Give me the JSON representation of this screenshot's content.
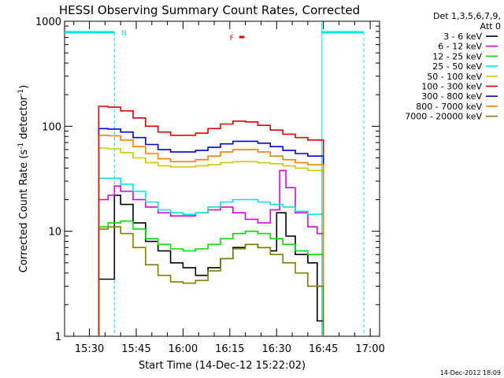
{
  "chart_data": {
    "type": "line",
    "title": "HESSI Observing Summary Count Rates, Corrected",
    "xlabel": "Start Time (14-Dec-12 15:22:02)",
    "ylabel_main": "Corrected Count Rate (s",
    "ylabel_sup1": "-1",
    "ylabel_mid": " detector",
    "ylabel_sup2": "-1",
    "ylabel_end": ")",
    "y_scale": "log",
    "ylim": [
      1,
      1000
    ],
    "xlim": [
      "15:22:02",
      "17:03:00"
    ],
    "x_ticks": [
      "15:30",
      "15:45",
      "16:00",
      "16:15",
      "16:30",
      "16:45",
      "17:00"
    ],
    "y_ticks": [
      "1",
      "10",
      "100",
      "1000"
    ],
    "legend_header": [
      "Det 1,3,5,6,7,9,",
      "Att 0"
    ],
    "legend_position": "right, outside plot",
    "timestamp": "14-Dec-2012 18:09",
    "markers": [
      {
        "label": "N",
        "color": "#00e5e5",
        "start": "15:38:00",
        "end": "16:44:30"
      },
      {
        "label": "F",
        "color": "#e00000",
        "start": "16:18:00",
        "end": "16:19:40"
      }
    ],
    "series": [
      {
        "name": "3 - 6 keV",
        "color": "#000000",
        "x": [
          "15:33",
          "15:36",
          "15:38",
          "15:40",
          "15:44",
          "15:48",
          "15:52",
          "15:56",
          "16:00",
          "16:04",
          "16:08",
          "16:12",
          "16:16",
          "16:20",
          "16:24",
          "16:28",
          "16:30",
          "16:33",
          "16:36",
          "16:40",
          "16:43",
          "16:45"
        ],
        "y": [
          3.5,
          3.5,
          22,
          18,
          12,
          8,
          6.5,
          5,
          4.5,
          3.8,
          4.5,
          5.5,
          7,
          7.5,
          7,
          6.5,
          15,
          9,
          6,
          5,
          1.4,
          1.2
        ]
      },
      {
        "name": "6 - 12 keV",
        "color": "#e000e0",
        "x": [
          "15:33",
          "15:36",
          "15:38",
          "15:40",
          "15:44",
          "15:48",
          "15:52",
          "15:56",
          "16:00",
          "16:04",
          "16:08",
          "16:12",
          "16:16",
          "16:20",
          "16:24",
          "16:28",
          "16:31",
          "16:33",
          "16:36",
          "16:40",
          "16:43",
          "16:45"
        ],
        "y": [
          20,
          22,
          27,
          24,
          20,
          17,
          15,
          14,
          14,
          15,
          16,
          17,
          15,
          13,
          12,
          16,
          38,
          26,
          15,
          11,
          9.5,
          9
        ]
      },
      {
        "name": "12 - 25 keV",
        "color": "#00e000",
        "x": [
          "15:33",
          "15:36",
          "15:40",
          "15:44",
          "15:48",
          "15:52",
          "15:56",
          "16:00",
          "16:04",
          "16:08",
          "16:12",
          "16:16",
          "16:20",
          "16:24",
          "16:28",
          "16:32",
          "16:36",
          "16:40",
          "16:45"
        ],
        "y": [
          11,
          12,
          12.5,
          10.5,
          8.5,
          7.5,
          6.8,
          6.5,
          6.8,
          7.5,
          8.5,
          9.5,
          10,
          9.5,
          8.5,
          7.5,
          6.5,
          6,
          5.5
        ]
      },
      {
        "name": "25 - 50 keV",
        "color": "#00e5e5",
        "x": [
          "15:33",
          "15:36",
          "15:40",
          "15:44",
          "15:48",
          "15:52",
          "15:56",
          "16:00",
          "16:04",
          "16:08",
          "16:12",
          "16:16",
          "16:20",
          "16:24",
          "16:28",
          "16:32",
          "16:36",
          "16:40",
          "16:45"
        ],
        "y": [
          32,
          32,
          28,
          24,
          19,
          16,
          15,
          14.5,
          15,
          17,
          19,
          20,
          20,
          19,
          18,
          17,
          15.5,
          14.5,
          14
        ]
      },
      {
        "name": "50 - 100 keV",
        "color": "#d2c800",
        "x": [
          "15:33",
          "15:36",
          "15:40",
          "15:44",
          "15:48",
          "15:52",
          "15:56",
          "16:00",
          "16:04",
          "16:08",
          "16:12",
          "16:16",
          "16:20",
          "16:24",
          "16:28",
          "16:32",
          "16:36",
          "16:40",
          "16:45"
        ],
        "y": [
          62,
          61,
          56,
          50,
          45,
          42,
          41,
          41,
          42,
          43,
          45,
          46,
          46,
          45,
          44,
          42,
          40,
          38,
          36
        ]
      },
      {
        "name": "100 - 300 keV",
        "color": "#e00000",
        "x": [
          "15:33",
          "15:36",
          "15:40",
          "15:44",
          "15:48",
          "15:52",
          "15:56",
          "16:00",
          "16:04",
          "16:08",
          "16:12",
          "16:16",
          "16:20",
          "16:24",
          "16:28",
          "16:32",
          "16:36",
          "16:40",
          "16:45"
        ],
        "y": [
          155,
          152,
          140,
          120,
          100,
          88,
          82,
          82,
          86,
          95,
          105,
          112,
          110,
          102,
          92,
          84,
          78,
          74,
          72
        ]
      },
      {
        "name": "300 - 800 keV",
        "color": "#0000e0",
        "x": [
          "15:33",
          "15:36",
          "15:40",
          "15:44",
          "15:48",
          "15:52",
          "15:56",
          "16:00",
          "16:04",
          "16:08",
          "16:12",
          "16:16",
          "16:20",
          "16:24",
          "16:28",
          "16:32",
          "16:36",
          "16:40",
          "16:45"
        ],
        "y": [
          95,
          94,
          88,
          78,
          67,
          60,
          57,
          57,
          59,
          63,
          68,
          72,
          72,
          69,
          64,
          59,
          55,
          52,
          50
        ]
      },
      {
        "name": "800 - 7000 keV",
        "color": "#ff7f00",
        "x": [
          "15:33",
          "15:36",
          "15:40",
          "15:44",
          "15:48",
          "15:52",
          "15:56",
          "16:00",
          "16:04",
          "16:08",
          "16:12",
          "16:16",
          "16:20",
          "16:24",
          "16:28",
          "16:32",
          "16:36",
          "16:40",
          "16:45"
        ],
        "y": [
          82,
          81,
          74,
          64,
          55,
          49,
          46,
          46,
          48,
          52,
          57,
          60,
          60,
          57,
          52,
          48,
          45,
          43,
          41
        ]
      },
      {
        "name": "7000 - 20000 keV",
        "color": "#808000",
        "x": [
          "15:33",
          "15:36",
          "15:40",
          "15:44",
          "15:48",
          "15:52",
          "15:56",
          "16:00",
          "16:04",
          "16:08",
          "16:12",
          "16:16",
          "16:20",
          "16:24",
          "16:28",
          "16:32",
          "16:36",
          "16:40",
          "16:45"
        ],
        "y": [
          10.5,
          11,
          9.5,
          7,
          4.8,
          3.8,
          3.3,
          3.2,
          3.4,
          4.2,
          5.5,
          6.8,
          7.5,
          7,
          6,
          5,
          4,
          3,
          2.5
        ]
      }
    ]
  }
}
